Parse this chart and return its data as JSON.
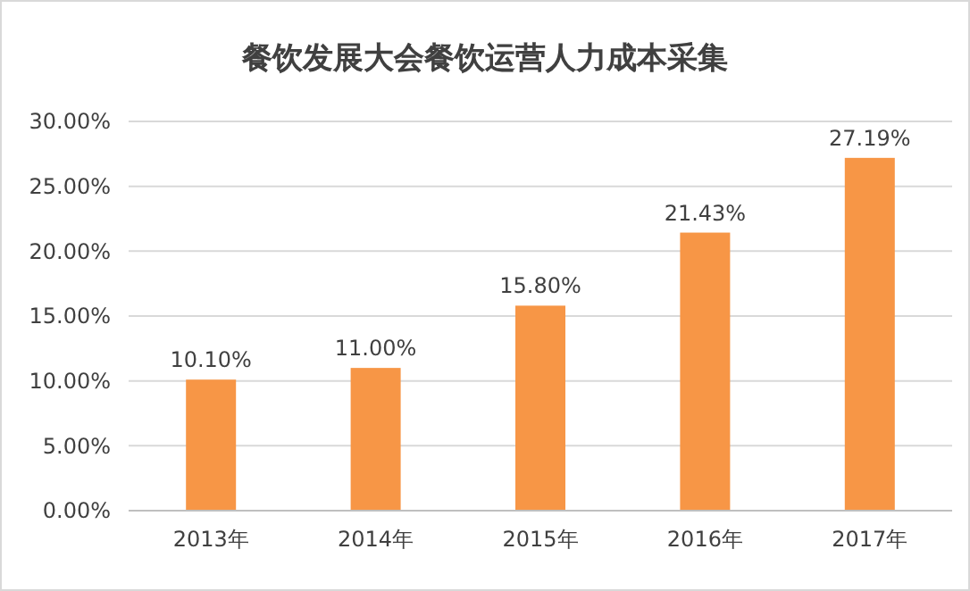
{
  "chart_data": {
    "type": "bar",
    "title": "餐饮发展大会餐饮运营人力成本采集",
    "categories": [
      "2013年",
      "2014年",
      "2015年",
      "2016年",
      "2017年"
    ],
    "values": [
      10.1,
      11.0,
      15.8,
      21.43,
      27.19
    ],
    "value_labels": [
      "10.10%",
      "11.00%",
      "15.80%",
      "21.43%",
      "27.19%"
    ],
    "color": "#f79646",
    "ylim": [
      0,
      30
    ],
    "yticks": [
      {
        "value": 0,
        "label": "0.00%"
      },
      {
        "value": 5,
        "label": "5.00%"
      },
      {
        "value": 10,
        "label": "10.00%"
      },
      {
        "value": 15,
        "label": "15.00%"
      },
      {
        "value": 20,
        "label": "20.00%"
      },
      {
        "value": 25,
        "label": "25.00%"
      },
      {
        "value": 30,
        "label": "30.00%"
      }
    ],
    "grid": "y"
  }
}
